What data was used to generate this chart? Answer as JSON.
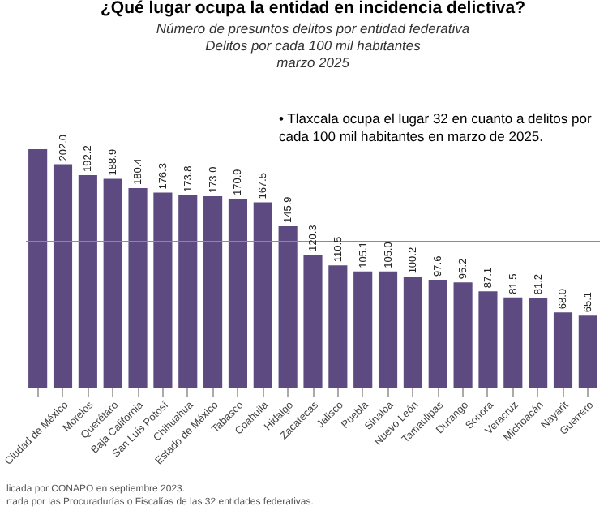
{
  "chart_data": {
    "type": "bar",
    "title": "¿Qué lugar ocupa la entidad en incidencia delictiva?",
    "subtitle": "Número de presuntos delitos por entidad federativa\nDelitos por cada 100 mil habitantes\nmarzo 2025",
    "categories": [
      null,
      "Ciudad de México",
      "Morelos",
      "Querétaro",
      "Baja California",
      "San Luis Potosí",
      "Chihuahua",
      "Estado de México",
      "Tabasco",
      "Coahuila",
      "Hidalgo",
      "Zacatecas",
      "Jalisco",
      "Puebla",
      "Sinaloa",
      "Nuevo León",
      "Tamaulipas",
      "Durango",
      "Sonora",
      "Veracruz",
      "Michoacán",
      "Nayarit",
      "Guerrero"
    ],
    "values": [
      215.6,
      202.0,
      192.2,
      188.9,
      180.4,
      176.3,
      173.8,
      173.0,
      170.9,
      167.5,
      145.9,
      120.3,
      110.5,
      105.1,
      105.0,
      100.2,
      97.6,
      95.2,
      87.1,
      81.5,
      81.2,
      68.0,
      65.1
    ],
    "value_labels": [
      null,
      "202.0",
      "192.2",
      "188.9",
      "180.4",
      "176.3",
      "173.8",
      "173.0",
      "170.9",
      "167.5",
      "145.9",
      "120.3",
      "110.5",
      "105.1",
      "105.0",
      "100.2",
      "97.6",
      "95.2",
      "87.1",
      "81.5",
      "81.2",
      "68.0",
      "65.1"
    ],
    "color": "#5c4a80",
    "ref_lines": [
      {
        "axis": "y",
        "value": 132,
        "color": "#8c8c8c"
      }
    ],
    "annotations": [
      "• Tlaxcala ocupa el lugar 32 en cuanto a delitos por cada 100 mil habitantes en marzo de 2025.",
      "licada por CONAPO en septiembre 2023.",
      "rtada por las Procuradurías o Fiscalías de las 32 entidades federativas."
    ]
  }
}
